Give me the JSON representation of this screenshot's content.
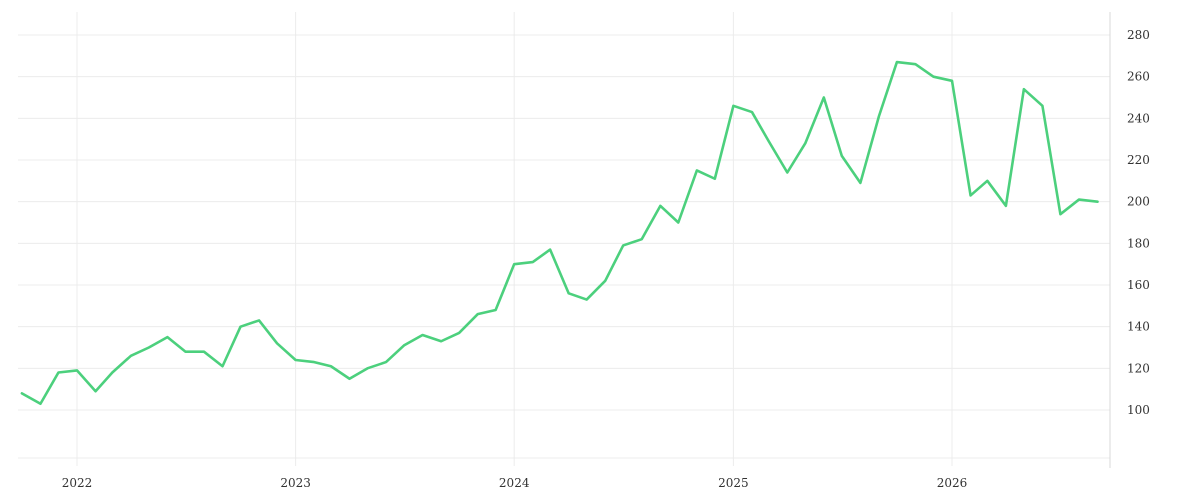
{
  "chart_data": {
    "type": "line",
    "title": "",
    "xlabel": "",
    "ylabel": "",
    "x_ticks": [
      "2022",
      "2023",
      "2024",
      "2025",
      "2026"
    ],
    "y_ticks": [
      100,
      120,
      140,
      160,
      180,
      200,
      220,
      240,
      260,
      280
    ],
    "ylim": [
      80,
      290
    ],
    "xlim": [
      "2021-10-01",
      "2026-09-01"
    ],
    "grid": true,
    "legend": "none",
    "series": [
      {
        "color": "#4cd07d",
        "x": [
          "2021-10",
          "2021-11",
          "2021-12",
          "2022-01",
          "2022-02",
          "2022-03",
          "2022-04",
          "2022-05",
          "2022-06",
          "2022-07",
          "2022-08",
          "2022-09",
          "2022-10",
          "2022-11",
          "2022-12",
          "2023-01",
          "2023-02",
          "2023-03",
          "2023-04",
          "2023-05",
          "2023-06",
          "2023-07",
          "2023-08",
          "2023-09",
          "2023-10",
          "2023-11",
          "2023-12",
          "2024-01",
          "2024-02",
          "2024-03",
          "2024-04",
          "2024-05",
          "2024-06",
          "2024-07",
          "2024-08",
          "2024-09",
          "2024-10",
          "2024-11",
          "2024-12",
          "2025-01",
          "2025-02",
          "2025-03",
          "2025-04",
          "2025-05",
          "2025-06",
          "2025-07",
          "2025-08",
          "2025-09",
          "2025-10",
          "2025-11",
          "2025-12",
          "2026-01",
          "2026-02",
          "2026-03",
          "2026-04",
          "2026-05",
          "2026-06",
          "2026-07",
          "2026-08",
          "2026-09"
        ],
        "values": [
          108,
          103,
          118,
          119,
          109,
          118,
          126,
          130,
          135,
          128,
          128,
          121,
          140,
          143,
          132,
          124,
          123,
          121,
          115,
          120,
          123,
          131,
          136,
          133,
          137,
          146,
          148,
          170,
          171,
          177,
          156,
          153,
          162,
          179,
          182,
          198,
          190,
          215,
          211,
          246,
          243,
          229,
          214,
          228,
          250,
          222,
          209,
          241,
          267,
          266,
          260,
          258,
          203,
          210,
          198,
          254,
          246,
          194,
          201,
          200
        ]
      }
    ]
  }
}
